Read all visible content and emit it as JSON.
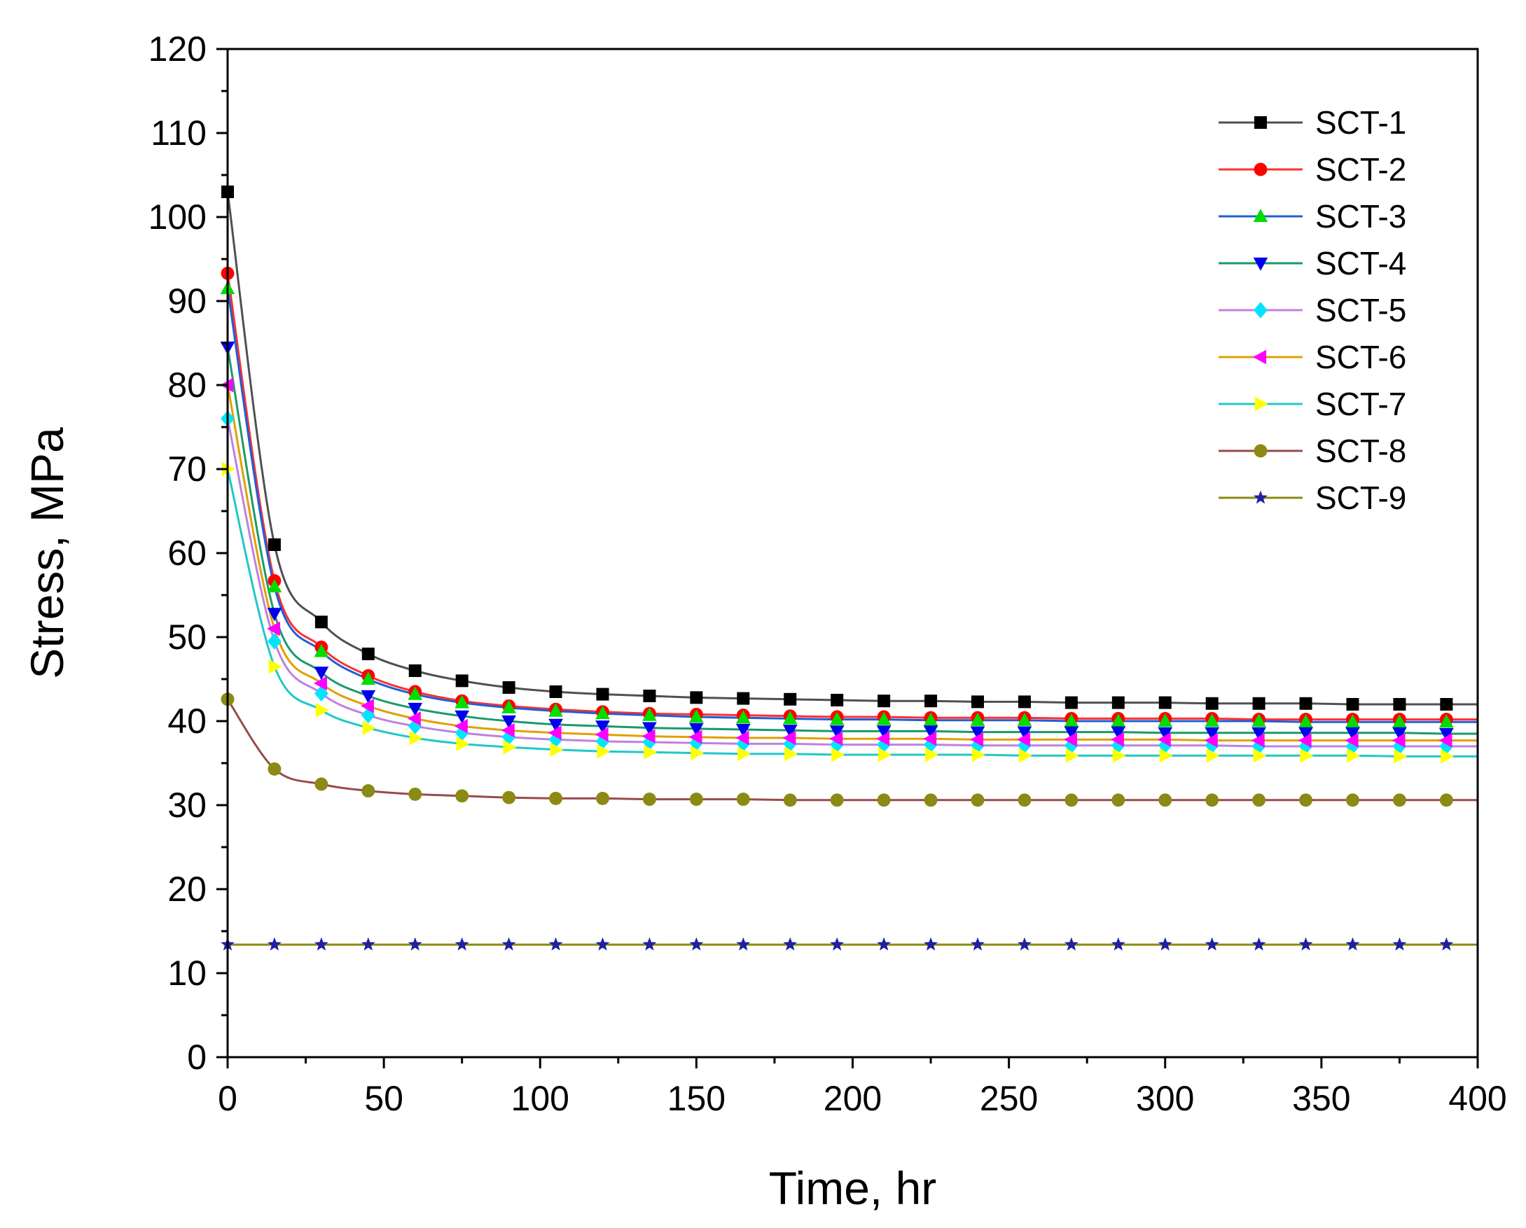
{
  "chart_data": {
    "type": "line",
    "title": "",
    "xlabel": "Time, hr",
    "ylabel": "Stress, MPa",
    "xlim": [
      0,
      400
    ],
    "ylim": [
      0,
      120
    ],
    "xticks": [
      0,
      50,
      100,
      150,
      200,
      250,
      300,
      350,
      400
    ],
    "yticks": [
      0,
      10,
      20,
      30,
      40,
      50,
      60,
      70,
      80,
      90,
      100,
      110,
      120
    ],
    "grid": false,
    "legend_position": "top-right",
    "x": [
      0,
      15,
      30,
      45,
      60,
      75,
      90,
      105,
      120,
      135,
      150,
      165,
      180,
      195,
      210,
      225,
      240,
      255,
      270,
      285,
      300,
      315,
      330,
      345,
      360,
      375,
      390
    ],
    "series": [
      {
        "name": "SCT-1",
        "line_color": "#505050",
        "marker": "square",
        "marker_color": "#000000",
        "values": [
          103,
          61,
          51.8,
          48,
          46,
          44.8,
          44,
          43.5,
          43.2,
          43,
          42.8,
          42.7,
          42.6,
          42.5,
          42.4,
          42.4,
          42.3,
          42.3,
          42.2,
          42.2,
          42.2,
          42.1,
          42.1,
          42.1,
          42,
          42,
          42
        ]
      },
      {
        "name": "SCT-2",
        "line_color": "#ff3030",
        "marker": "circle",
        "marker_color": "#ff0000",
        "values": [
          93.3,
          56.7,
          48.8,
          45.4,
          43.5,
          42.4,
          41.8,
          41.4,
          41.1,
          40.9,
          40.8,
          40.7,
          40.6,
          40.5,
          40.5,
          40.4,
          40.4,
          40.4,
          40.3,
          40.3,
          40.3,
          40.3,
          40.2,
          40.2,
          40.2,
          40.2,
          40.2
        ]
      },
      {
        "name": "SCT-3",
        "line_color": "#1f5fd6",
        "marker": "triangle-up",
        "marker_color": "#00dd00",
        "values": [
          91.5,
          56,
          48.3,
          45,
          43.2,
          42.2,
          41.6,
          41.2,
          40.9,
          40.7,
          40.5,
          40.4,
          40.3,
          40.2,
          40.2,
          40.1,
          40.1,
          40.1,
          40,
          40,
          40,
          40,
          40,
          39.9,
          39.9,
          39.9,
          39.9
        ]
      },
      {
        "name": "SCT-4",
        "line_color": "#1a9a6c",
        "marker": "triangle-down",
        "marker_color": "#0000ee",
        "values": [
          84.5,
          52.8,
          45.8,
          43,
          41.5,
          40.6,
          40,
          39.6,
          39.4,
          39.2,
          39.1,
          39,
          38.9,
          38.8,
          38.8,
          38.8,
          38.7,
          38.7,
          38.7,
          38.7,
          38.6,
          38.6,
          38.6,
          38.6,
          38.6,
          38.6,
          38.5
        ]
      },
      {
        "name": "SCT-5",
        "line_color": "#c080e0",
        "marker": "diamond",
        "marker_color": "#00e5ff",
        "values": [
          76,
          49.5,
          43.3,
          40.7,
          39.4,
          38.6,
          38.1,
          37.8,
          37.6,
          37.5,
          37.4,
          37.3,
          37.3,
          37.2,
          37.2,
          37.2,
          37.1,
          37.1,
          37.1,
          37.1,
          37.1,
          37.1,
          37,
          37,
          37,
          37,
          37
        ]
      },
      {
        "name": "SCT-6",
        "line_color": "#e0a000",
        "marker": "triangle-left",
        "marker_color": "#ff00ff",
        "values": [
          80,
          51,
          44.5,
          41.8,
          40.3,
          39.4,
          38.9,
          38.6,
          38.4,
          38.2,
          38.1,
          38,
          38,
          37.9,
          37.9,
          37.9,
          37.8,
          37.8,
          37.8,
          37.8,
          37.8,
          37.7,
          37.7,
          37.7,
          37.7,
          37.7,
          37.7
        ]
      },
      {
        "name": "SCT-7",
        "line_color": "#20c8c8",
        "marker": "triangle-right",
        "marker_color": "#ffff00",
        "values": [
          70,
          46.5,
          41.3,
          39.2,
          38,
          37.3,
          36.9,
          36.6,
          36.4,
          36.3,
          36.2,
          36.1,
          36.1,
          36,
          36,
          36,
          36,
          35.9,
          35.9,
          35.9,
          35.9,
          35.9,
          35.9,
          35.9,
          35.9,
          35.8,
          35.8
        ]
      },
      {
        "name": "SCT-8",
        "line_color": "#9a4a4a",
        "marker": "circle",
        "marker_color": "#8a8a14",
        "values": [
          42.6,
          34.3,
          32.5,
          31.7,
          31.3,
          31.1,
          30.9,
          30.8,
          30.8,
          30.7,
          30.7,
          30.7,
          30.6,
          30.6,
          30.6,
          30.6,
          30.6,
          30.6,
          30.6,
          30.6,
          30.6,
          30.6,
          30.6,
          30.6,
          30.6,
          30.6,
          30.6
        ]
      },
      {
        "name": "SCT-9",
        "line_color": "#8a8a14",
        "marker": "star",
        "marker_color": "#2020a0",
        "values": [
          13.4,
          13.4,
          13.4,
          13.4,
          13.4,
          13.4,
          13.4,
          13.4,
          13.4,
          13.4,
          13.4,
          13.4,
          13.4,
          13.4,
          13.4,
          13.4,
          13.4,
          13.4,
          13.4,
          13.4,
          13.4,
          13.4,
          13.4,
          13.4,
          13.4,
          13.4,
          13.4
        ]
      }
    ]
  }
}
